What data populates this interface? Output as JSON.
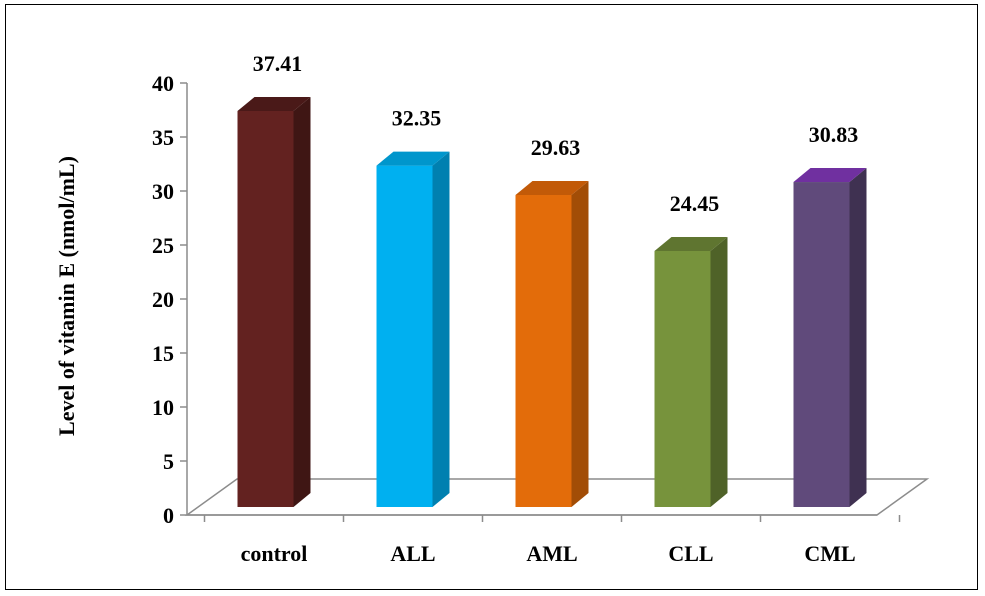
{
  "chart_data": {
    "type": "bar",
    "title": "",
    "xlabel": "",
    "ylabel": "Level of  vitamin E (nmol/mL)",
    "categories": [
      "control",
      "ALL",
      "AML",
      "CLL",
      "CML"
    ],
    "values": [
      37.41,
      32.35,
      29.63,
      24.45,
      30.83
    ],
    "data_labels": [
      "37.41",
      "32.35",
      "29.63",
      "24.45",
      "30.83"
    ],
    "ylim": [
      0,
      40
    ],
    "yticks": [
      "0",
      "5",
      "10",
      "15",
      "20",
      "25",
      "30",
      "35",
      "40"
    ],
    "grid": false,
    "legend": "none",
    "style": "3d-column",
    "colors": [
      "#632220",
      "#00b0f0",
      "#e36c0a",
      "#77933c",
      "#604a7b"
    ],
    "side_colors": [
      "#3f1614",
      "#0080b0",
      "#a24d06",
      "#4f6228",
      "#3f3151"
    ],
    "top_colors": [
      "#4a1918",
      "#0096cc",
      "#c25a08",
      "#5f7530",
      "#7030a0"
    ]
  }
}
